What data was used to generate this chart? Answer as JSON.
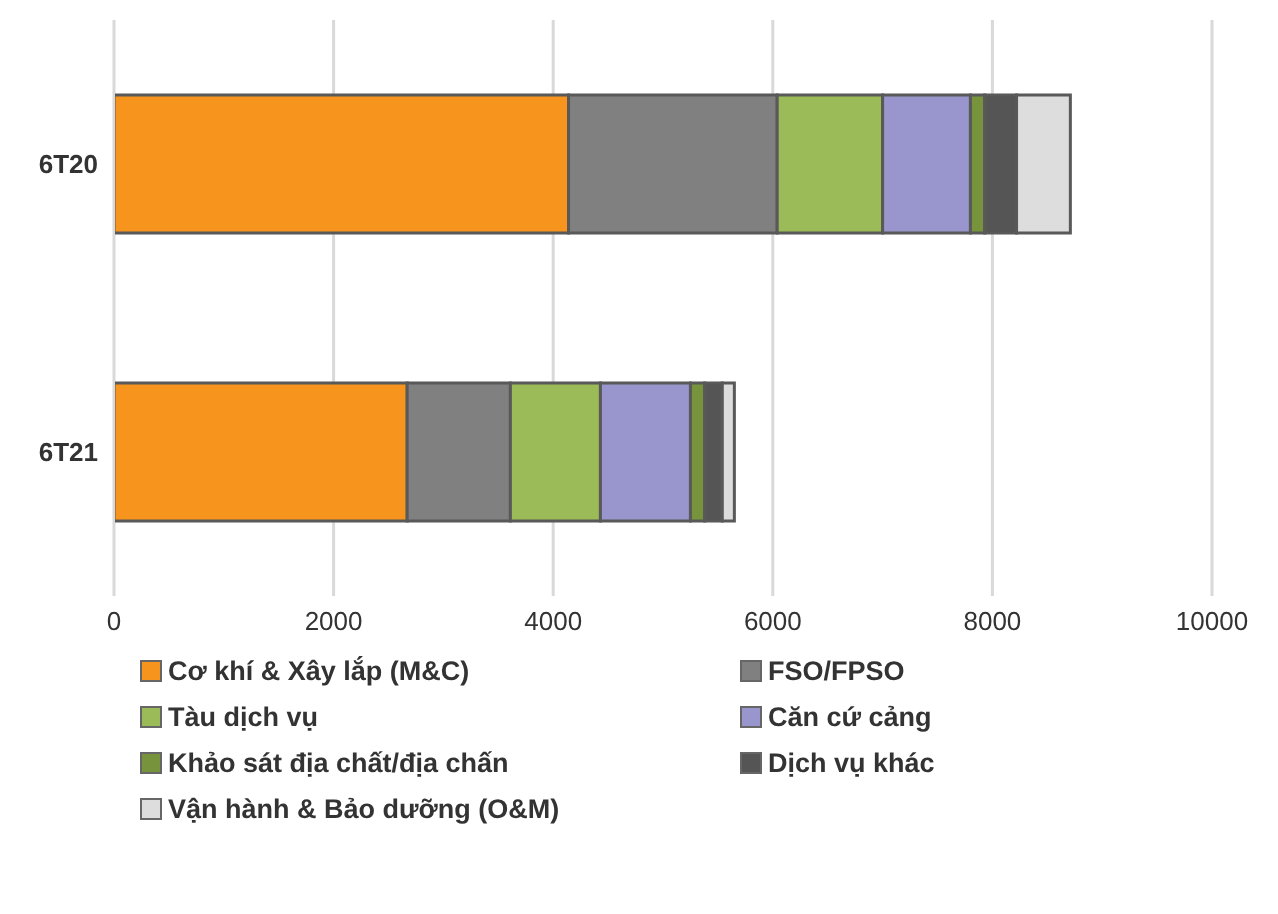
{
  "chart_data": {
    "type": "bar",
    "orientation": "horizontal",
    "stacked": true,
    "categories": [
      "6T20",
      "6T21"
    ],
    "series": [
      {
        "name": "Cơ khí & Xây lắp (M&C)",
        "color": "#f7941d",
        "values": [
          4140,
          2670
        ]
      },
      {
        "name": "FSO/FPSO",
        "color": "#808080",
        "values": [
          1900,
          940
        ]
      },
      {
        "name": "Tàu dịch vụ",
        "color": "#9bbb59",
        "values": [
          960,
          820
        ]
      },
      {
        "name": "Căn cứ cảng",
        "color": "#9896cc",
        "values": [
          800,
          820
        ]
      },
      {
        "name": "Khảo sát địa chất/địa chấn",
        "color": "#77933c",
        "values": [
          130,
          130
        ]
      },
      {
        "name": "Dịch vụ khác",
        "color": "#555555",
        "values": [
          290,
          160
        ]
      },
      {
        "name": "Vận hành & Bảo dưỡng (O&M)",
        "color": "#dddddd",
        "values": [
          490,
          110
        ]
      }
    ],
    "xlim": [
      0,
      10000
    ],
    "xticks": [
      0,
      2000,
      4000,
      6000,
      8000,
      10000
    ],
    "grid": "x",
    "legend": "bottom"
  }
}
